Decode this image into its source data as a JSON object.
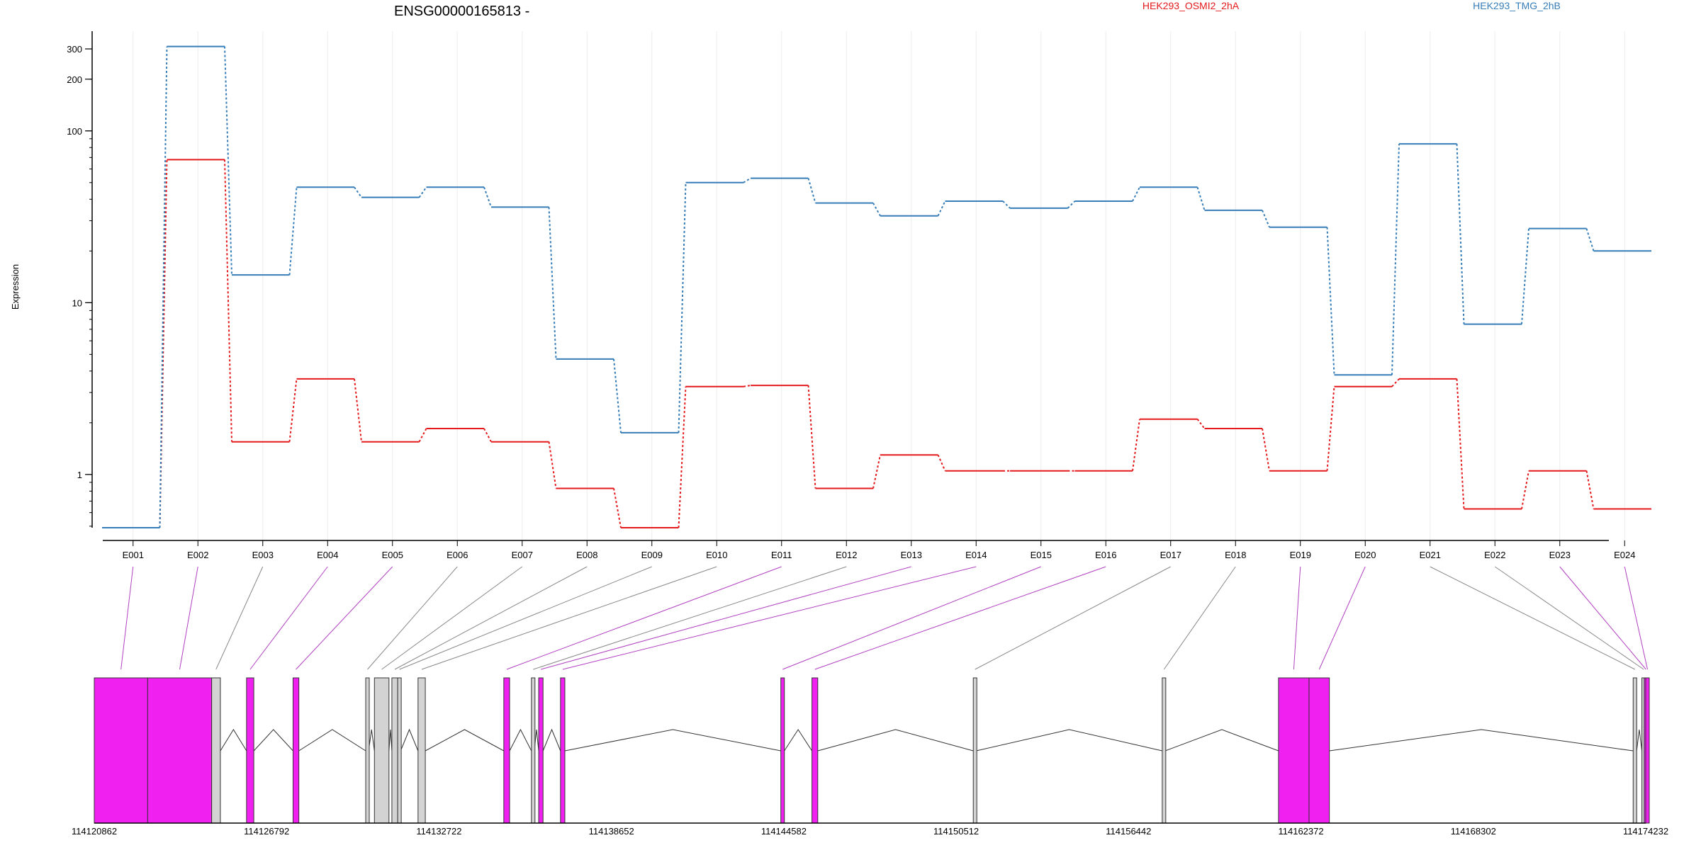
{
  "chart_data": {
    "type": "line",
    "title": "ENSG00000165813 -",
    "ylabel": "Expression",
    "xlabel": "",
    "y_scale": "log",
    "y_ticks": [
      1,
      10,
      100,
      200,
      300
    ],
    "y_tick_labels": [
      "1",
      "10",
      "100",
      "200",
      "300"
    ],
    "categories": [
      "E001",
      "E002",
      "E003",
      "E004",
      "E005",
      "E006",
      "E007",
      "E008",
      "E009",
      "E010",
      "E011",
      "E012",
      "E013",
      "E014",
      "E015",
      "E016",
      "E017",
      "E018",
      "E019",
      "E020",
      "E021",
      "E022",
      "E023",
      "E024"
    ],
    "series": [
      {
        "name": "HEK293_OSMI2_2hA",
        "color": "#e41a1c",
        "values": [
          0.49,
          68,
          1.55,
          3.6,
          1.55,
          1.85,
          1.55,
          0.83,
          0.49,
          3.25,
          3.3,
          0.83,
          1.3,
          1.05,
          1.05,
          1.05,
          2.1,
          1.85,
          1.05,
          3.25,
          3.6,
          0.63,
          1.05,
          0.63
        ]
      },
      {
        "name": "HEK293_TMG_2hB",
        "color": "#377eb8",
        "values": [
          0.49,
          310,
          14.5,
          47,
          41,
          47,
          36,
          4.7,
          1.75,
          50,
          53,
          38,
          32,
          39,
          35.5,
          39,
          47,
          34.5,
          27.5,
          3.8,
          84,
          7.5,
          27,
          20
        ]
      }
    ],
    "gene_model": {
      "coordinate_labels": [
        "114120862",
        "114126792",
        "114132722",
        "114138652",
        "114144582",
        "114150512",
        "114156442",
        "114162372",
        "114168302",
        "114174232"
      ],
      "highlight_color": "#f020f0",
      "normal_color": "#d3d3d3",
      "exons": [
        {
          "bin": "E001",
          "start": 114120862,
          "end": 114122700,
          "highlight": true
        },
        {
          "bin": "E002",
          "start": 114122700,
          "end": 114124900,
          "highlight": true
        },
        {
          "bin": "E003",
          "start": 114124900,
          "end": 114125200,
          "highlight": false
        },
        {
          "bin": "E004",
          "start": 114126100,
          "end": 114126350,
          "highlight": true
        },
        {
          "bin": "E005",
          "start": 114127700,
          "end": 114127900,
          "highlight": true
        },
        {
          "bin": "E006",
          "start": 114130200,
          "end": 114130300,
          "highlight": false
        },
        {
          "bin": "E007",
          "start": 114130500,
          "end": 114131000,
          "highlight": false
        },
        {
          "bin": "E008",
          "start": 114131100,
          "end": 114131300,
          "highlight": false
        },
        {
          "bin": "E009",
          "start": 114131300,
          "end": 114131400,
          "highlight": false
        },
        {
          "bin": "E010",
          "start": 114132000,
          "end": 114132250,
          "highlight": false
        },
        {
          "bin": "E011",
          "start": 114134950,
          "end": 114135150,
          "highlight": true
        },
        {
          "bin": "E012",
          "start": 114135900,
          "end": 114136000,
          "highlight": false
        },
        {
          "bin": "E013",
          "start": 114136150,
          "end": 114136300,
          "highlight": true
        },
        {
          "bin": "E014",
          "start": 114136900,
          "end": 114137050,
          "highlight": true
        },
        {
          "bin": "E015",
          "start": 114144480,
          "end": 114144600,
          "highlight": true
        },
        {
          "bin": "E016",
          "start": 114145550,
          "end": 114145750,
          "highlight": true
        },
        {
          "bin": "E017",
          "start": 114151100,
          "end": 114151200,
          "highlight": false
        },
        {
          "bin": "E018",
          "start": 114157600,
          "end": 114157700,
          "highlight": false
        },
        {
          "bin": "E019",
          "start": 114161600,
          "end": 114162650,
          "highlight": true
        },
        {
          "bin": "E020",
          "start": 114162650,
          "end": 114163350,
          "highlight": true
        },
        {
          "bin": "E021",
          "start": 114173800,
          "end": 114173920,
          "highlight": false
        },
        {
          "bin": "E022",
          "start": 114174100,
          "end": 114174180,
          "highlight": false
        },
        {
          "bin": "E023",
          "start": 114174180,
          "end": 114174232,
          "highlight": true
        },
        {
          "bin": "E024",
          "start": 114174232,
          "end": 114174310,
          "highlight": true
        }
      ]
    }
  }
}
